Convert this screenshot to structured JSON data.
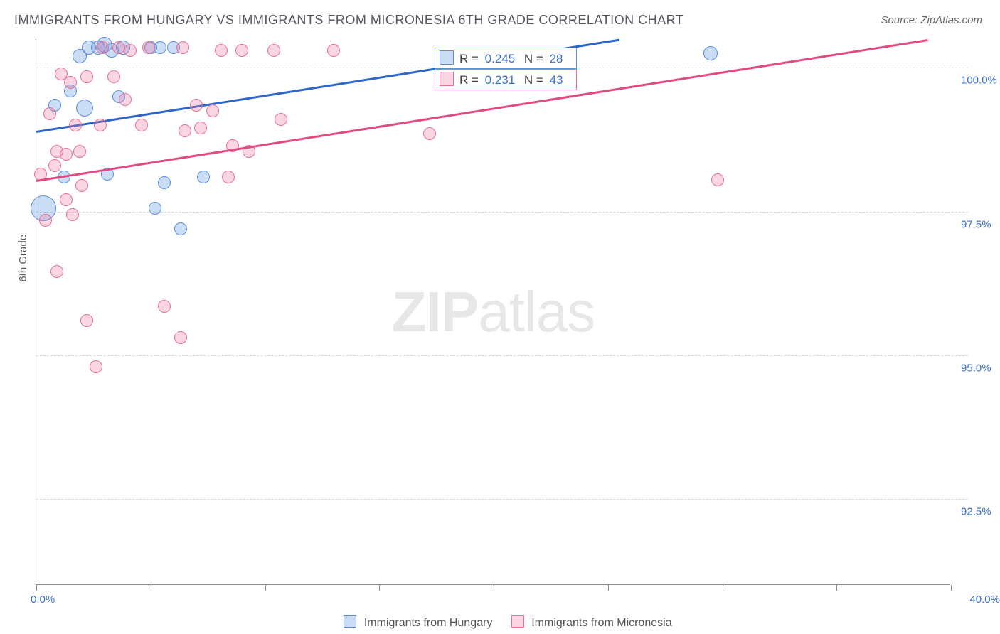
{
  "title": "IMMIGRANTS FROM HUNGARY VS IMMIGRANTS FROM MICRONESIA 6TH GRADE CORRELATION CHART",
  "source": "Source: ZipAtlas.com",
  "watermark_bold": "ZIP",
  "watermark_light": "atlas",
  "axis_y_title": "6th Grade",
  "chart": {
    "type": "scatter",
    "xlim": [
      0,
      40
    ],
    "ylim": [
      91,
      100.5
    ],
    "x_min_label": "0.0%",
    "x_max_label": "40.0%",
    "x_ticks": [
      0,
      5,
      10,
      15,
      20,
      25,
      30,
      35,
      40
    ],
    "y_grid": [
      {
        "v": 92.5,
        "label": "92.5%"
      },
      {
        "v": 95.0,
        "label": "95.0%"
      },
      {
        "v": 97.5,
        "label": "97.5%"
      },
      {
        "v": 100.0,
        "label": "100.0%"
      }
    ],
    "background_color": "#ffffff",
    "grid_color": "#d5d5d5",
    "axis_color": "#888888",
    "label_color": "#3b6fc9"
  },
  "series": [
    {
      "key": "hungary",
      "label": "Immigrants from Hungary",
      "fill": "rgba(105,155,225,0.35)",
      "stroke": "#5a8edb",
      "line_color": "#2f66c9",
      "r_value": "0.245",
      "n_value": "28",
      "trend": {
        "x1": 0,
        "y1": 98.9,
        "x2": 25.5,
        "y2": 100.5
      },
      "points": [
        {
          "x": 0.3,
          "y": 97.55,
          "r": 18
        },
        {
          "x": 0.8,
          "y": 99.35,
          "r": 9
        },
        {
          "x": 1.2,
          "y": 98.1,
          "r": 9
        },
        {
          "x": 1.5,
          "y": 99.6,
          "r": 9
        },
        {
          "x": 1.9,
          "y": 100.2,
          "r": 10
        },
        {
          "x": 2.1,
          "y": 99.3,
          "r": 12
        },
        {
          "x": 2.3,
          "y": 100.35,
          "r": 10
        },
        {
          "x": 2.7,
          "y": 100.35,
          "r": 10
        },
        {
          "x": 3.0,
          "y": 100.4,
          "r": 11
        },
        {
          "x": 3.1,
          "y": 98.15,
          "r": 9
        },
        {
          "x": 3.3,
          "y": 100.3,
          "r": 10
        },
        {
          "x": 3.6,
          "y": 99.5,
          "r": 9
        },
        {
          "x": 3.8,
          "y": 100.35,
          "r": 10
        },
        {
          "x": 5.0,
          "y": 100.35,
          "r": 9
        },
        {
          "x": 5.2,
          "y": 97.55,
          "r": 9
        },
        {
          "x": 5.4,
          "y": 100.35,
          "r": 9
        },
        {
          "x": 5.6,
          "y": 98.0,
          "r": 9
        },
        {
          "x": 6.0,
          "y": 100.35,
          "r": 9
        },
        {
          "x": 6.3,
          "y": 97.2,
          "r": 9
        },
        {
          "x": 7.3,
          "y": 98.1,
          "r": 9
        },
        {
          "x": 29.5,
          "y": 100.25,
          "r": 10
        }
      ]
    },
    {
      "key": "micronesia",
      "label": "Immigrants from Micronesia",
      "fill": "rgba(235,120,155,0.30)",
      "stroke": "#e76f9a",
      "line_color": "#e14b83",
      "r_value": "0.231",
      "n_value": "43",
      "trend": {
        "x1": 0,
        "y1": 98.05,
        "x2": 39.0,
        "y2": 100.5
      },
      "points": [
        {
          "x": 0.2,
          "y": 98.15,
          "r": 9
        },
        {
          "x": 0.4,
          "y": 97.35,
          "r": 9
        },
        {
          "x": 0.6,
          "y": 99.2,
          "r": 9
        },
        {
          "x": 0.8,
          "y": 98.3,
          "r": 9
        },
        {
          "x": 0.9,
          "y": 96.45,
          "r": 9
        },
        {
          "x": 0.9,
          "y": 98.55,
          "r": 9
        },
        {
          "x": 1.1,
          "y": 99.9,
          "r": 9
        },
        {
          "x": 1.3,
          "y": 98.5,
          "r": 9
        },
        {
          "x": 1.3,
          "y": 97.7,
          "r": 9
        },
        {
          "x": 1.5,
          "y": 99.75,
          "r": 9
        },
        {
          "x": 1.6,
          "y": 97.45,
          "r": 9
        },
        {
          "x": 1.7,
          "y": 99.0,
          "r": 9
        },
        {
          "x": 1.9,
          "y": 98.55,
          "r": 9
        },
        {
          "x": 2.0,
          "y": 97.95,
          "r": 9
        },
        {
          "x": 2.2,
          "y": 99.85,
          "r": 9
        },
        {
          "x": 2.2,
          "y": 95.6,
          "r": 9
        },
        {
          "x": 2.6,
          "y": 94.8,
          "r": 9
        },
        {
          "x": 2.8,
          "y": 99.0,
          "r": 9
        },
        {
          "x": 2.9,
          "y": 100.35,
          "r": 9
        },
        {
          "x": 3.4,
          "y": 99.85,
          "r": 9
        },
        {
          "x": 3.6,
          "y": 100.35,
          "r": 9
        },
        {
          "x": 3.9,
          "y": 99.45,
          "r": 9
        },
        {
          "x": 4.1,
          "y": 100.3,
          "r": 9
        },
        {
          "x": 4.6,
          "y": 99.0,
          "r": 9
        },
        {
          "x": 4.9,
          "y": 100.35,
          "r": 9
        },
        {
          "x": 5.6,
          "y": 95.85,
          "r": 9
        },
        {
          "x": 6.3,
          "y": 95.3,
          "r": 9
        },
        {
          "x": 6.4,
          "y": 100.35,
          "r": 9
        },
        {
          "x": 6.5,
          "y": 98.9,
          "r": 9
        },
        {
          "x": 7.0,
          "y": 99.35,
          "r": 9
        },
        {
          "x": 7.2,
          "y": 98.95,
          "r": 9
        },
        {
          "x": 7.7,
          "y": 99.25,
          "r": 9
        },
        {
          "x": 8.1,
          "y": 100.3,
          "r": 9
        },
        {
          "x": 8.4,
          "y": 98.1,
          "r": 9
        },
        {
          "x": 8.6,
          "y": 98.65,
          "r": 9
        },
        {
          "x": 9.0,
          "y": 100.3,
          "r": 9
        },
        {
          "x": 9.3,
          "y": 98.55,
          "r": 9
        },
        {
          "x": 10.4,
          "y": 100.3,
          "r": 9
        },
        {
          "x": 10.7,
          "y": 99.1,
          "r": 9
        },
        {
          "x": 13.0,
          "y": 100.3,
          "r": 9
        },
        {
          "x": 17.2,
          "y": 98.85,
          "r": 9
        },
        {
          "x": 29.8,
          "y": 98.05,
          "r": 9
        }
      ]
    }
  ],
  "r_prefix": "R =",
  "n_prefix": "N ="
}
